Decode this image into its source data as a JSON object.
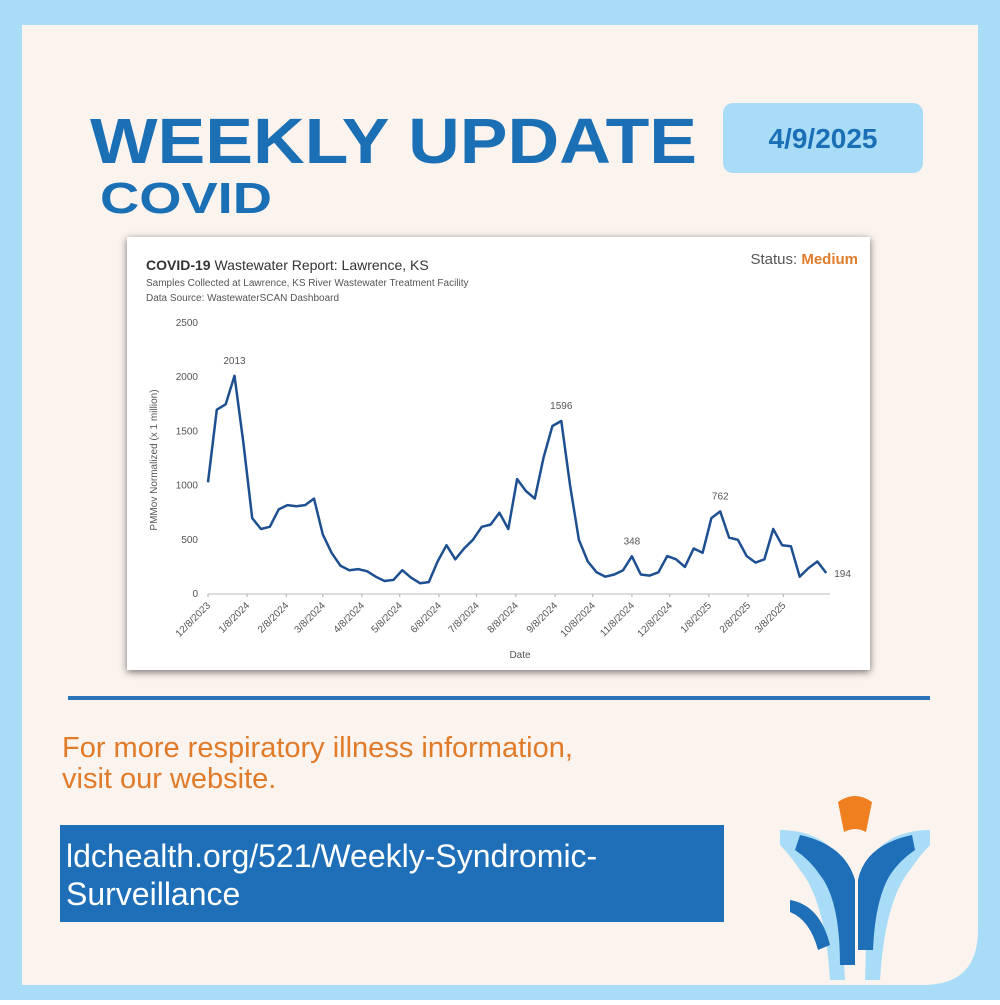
{
  "header": {
    "title": "WEEKLY UPDATE",
    "subtitle": "COVID",
    "date": "4/9/2025"
  },
  "chart_data": {
    "type": "line",
    "title_bold": "COVID-19",
    "title": "Wastewater Report: Lawrence, KS",
    "subtitle": "Samples Collected at Lawrence, KS River Wastewater Treatment Facility",
    "source": "Data Source: WastewaterSCAN Dashboard",
    "status": {
      "label": "Status:",
      "value": "Medium"
    },
    "x_label": "Date",
    "y_label": "PMMov Normalized (x 1 million)",
    "color": "#1d4f91",
    "x": [
      "12/8/2023",
      "12/15/2023",
      "12/22/2023",
      "12/29/2023",
      "1/5/2024",
      "1/12/2024",
      "1/19/2024",
      "1/26/2024",
      "2/2/2024",
      "2/9/2024",
      "2/16/2024",
      "2/23/2024",
      "3/1/2024",
      "3/8/2024",
      "3/15/2024",
      "3/22/2024",
      "3/29/2024",
      "4/5/2024",
      "4/12/2024",
      "4/19/2024",
      "4/26/2024",
      "5/3/2024",
      "5/10/2024",
      "5/17/2024",
      "5/24/2024",
      "5/31/2024",
      "6/7/2024",
      "6/14/2024",
      "6/21/2024",
      "6/28/2024",
      "7/5/2024",
      "7/12/2024",
      "7/19/2024",
      "7/26/2024",
      "8/2/2024",
      "8/9/2024",
      "8/16/2024",
      "8/23/2024",
      "8/30/2024",
      "9/6/2024",
      "9/13/2024",
      "9/20/2024",
      "9/27/2024",
      "10/4/2024",
      "10/11/2024",
      "10/18/2024",
      "10/25/2024",
      "11/1/2024",
      "11/8/2024",
      "11/15/2024",
      "11/22/2024",
      "11/29/2024",
      "12/6/2024",
      "12/13/2024",
      "12/20/2024",
      "12/27/2024",
      "1/3/2025",
      "1/10/2025",
      "1/17/2025",
      "1/24/2025",
      "1/31/2025",
      "2/7/2025",
      "2/14/2025",
      "2/21/2025",
      "2/28/2025",
      "3/7/2025",
      "3/14/2025",
      "3/21/2025",
      "3/28/2025",
      "4/4/2025",
      "4/11/2025"
    ],
    "values": [
      1030,
      1700,
      1750,
      2013,
      1400,
      700,
      600,
      620,
      780,
      820,
      810,
      820,
      880,
      550,
      380,
      260,
      220,
      230,
      210,
      160,
      120,
      130,
      220,
      150,
      100,
      110,
      300,
      450,
      320,
      420,
      500,
      620,
      640,
      750,
      600,
      1060,
      950,
      880,
      1260,
      1550,
      1596,
      1000,
      500,
      300,
      200,
      160,
      180,
      220,
      348,
      180,
      170,
      200,
      350,
      320,
      250,
      420,
      380,
      700,
      762,
      520,
      500,
      350,
      290,
      320,
      600,
      450,
      440,
      160,
      240,
      300,
      194
    ],
    "annotations": [
      {
        "x": "12/29/2023",
        "y": 2013
      },
      {
        "x": "9/13/2024",
        "y": 1596
      },
      {
        "x": "11/8/2024",
        "y": 348
      },
      {
        "x": "1/17/2025",
        "y": 762
      },
      {
        "x": "4/11/2025",
        "y": 194
      }
    ],
    "xlim": [
      "12/8/2023",
      "4/14/2025"
    ],
    "xticks": [
      "12/8/2023",
      "1/8/2024",
      "2/8/2024",
      "3/8/2024",
      "4/8/2024",
      "5/8/2024",
      "6/8/2024",
      "7/8/2024",
      "8/8/2024",
      "9/8/2024",
      "10/8/2024",
      "11/8/2024",
      "12/8/2024",
      "1/8/2025",
      "2/8/2025",
      "3/8/2025"
    ],
    "ylim": [
      0,
      2500
    ],
    "yticks": [
      0,
      500,
      1000,
      1500,
      2000,
      2500
    ],
    "grid": false
  },
  "footer": {
    "lines": [
      "For more respiratory illness information,",
      "visit our website."
    ],
    "link": [
      "ldchealth.org/521/Weekly-Syndromic-",
      "Surveillance"
    ]
  }
}
